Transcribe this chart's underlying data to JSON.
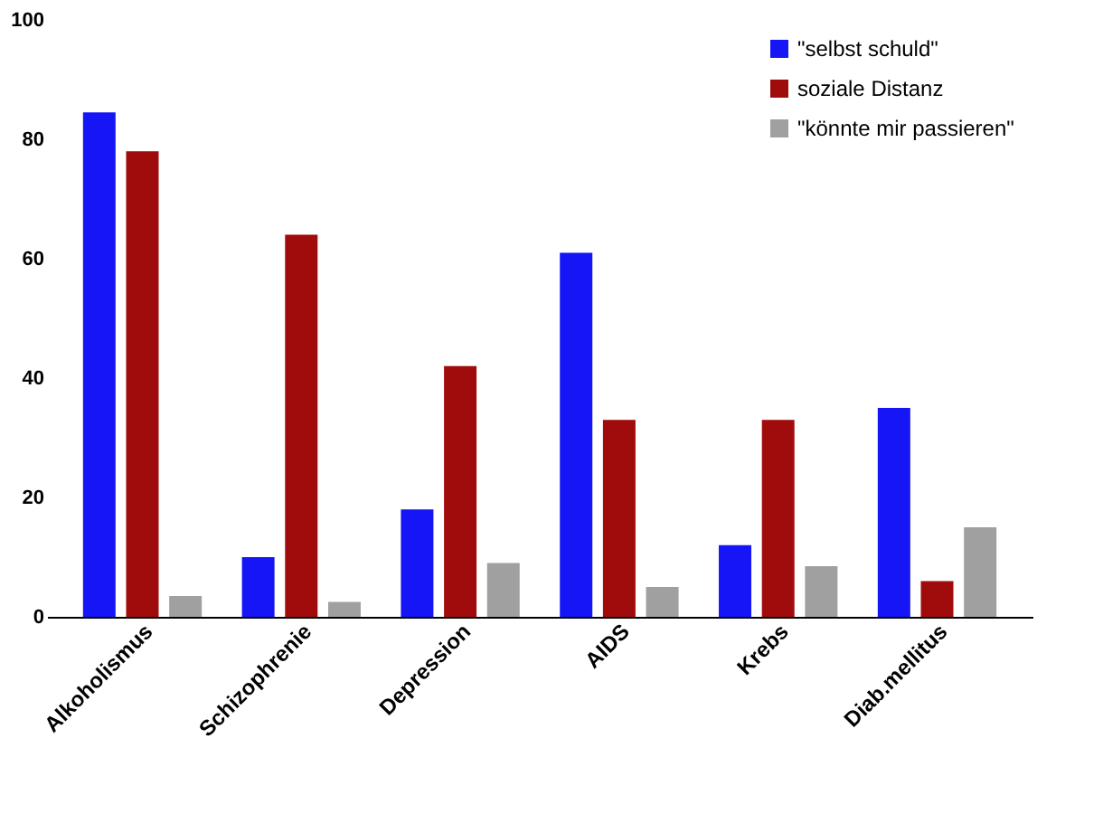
{
  "chart_data": {
    "type": "bar",
    "categories": [
      "Alkoholismus",
      "Schizophrenie",
      "Depression",
      "AIDS",
      "Krebs",
      "Diab.mellitus"
    ],
    "series": [
      {
        "name": "\"selbst schuld\"",
        "color": "#1515f5",
        "values": [
          84.5,
          10,
          18,
          61,
          12,
          35
        ]
      },
      {
        "name": "soziale Distanz",
        "color": "#a00c0c",
        "values": [
          78,
          64,
          42,
          33,
          33,
          6
        ]
      },
      {
        "name": "\"könnte mir passieren\"",
        "color": "#a0a0a0",
        "values": [
          3.5,
          2.5,
          9,
          5,
          8.5,
          15
        ]
      }
    ],
    "ylim": [
      0,
      100
    ],
    "yticks": [
      0,
      20,
      40,
      60,
      80,
      100
    ],
    "grid": false,
    "legend": "top right"
  }
}
